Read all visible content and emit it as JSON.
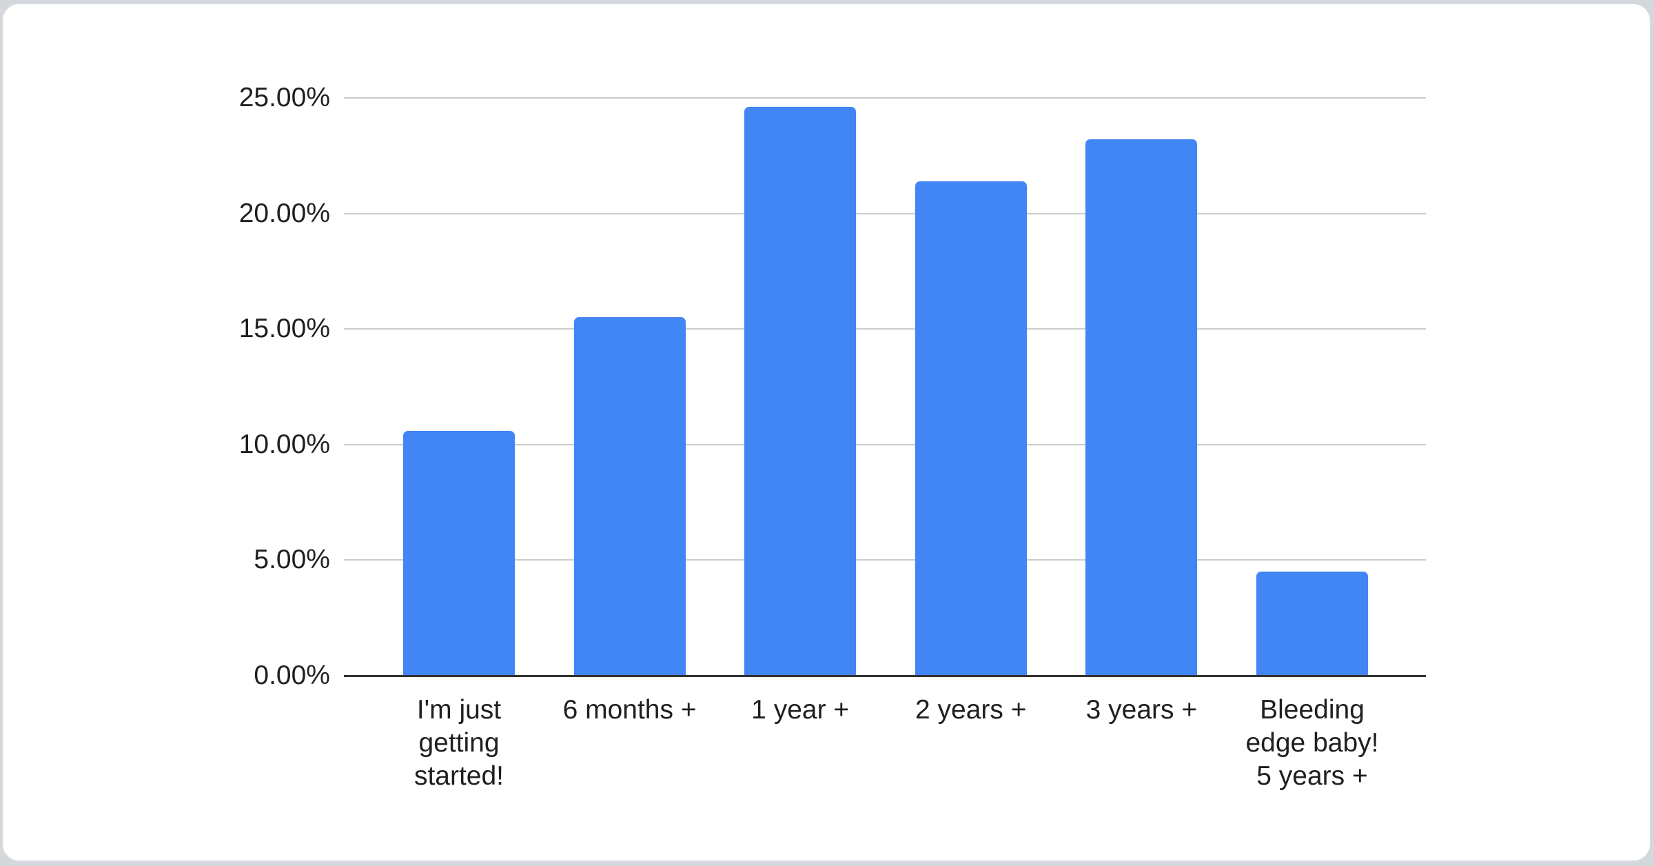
{
  "chart_data": {
    "type": "bar",
    "title": "",
    "categories": [
      "I'm just getting started!",
      "6 months +",
      "1 year +",
      "2 years +",
      "3 years +",
      "Bleeding edge baby! 5 years +"
    ],
    "values": [
      10.6,
      15.5,
      24.6,
      21.4,
      23.2,
      4.5
    ],
    "unit": "%",
    "ylim": [
      0,
      25
    ],
    "ticks": [
      {
        "value": 0,
        "label": "0.00%"
      },
      {
        "value": 5,
        "label": "5.00%"
      },
      {
        "value": 10,
        "label": "10.00%"
      },
      {
        "value": 15,
        "label": "15.00%"
      },
      {
        "value": 20,
        "label": "20.00%"
      },
      {
        "value": 25,
        "label": "25.00%"
      }
    ],
    "grid": true,
    "legend": "none",
    "colors": {
      "bar": "#4285f4",
      "gridline": "#cccccc",
      "axis_line": "#333333",
      "label_text": "#1f1f1f",
      "card_background": "#ffffff",
      "card_border": "#d8dbde",
      "page_background": "#d4d7db"
    }
  }
}
